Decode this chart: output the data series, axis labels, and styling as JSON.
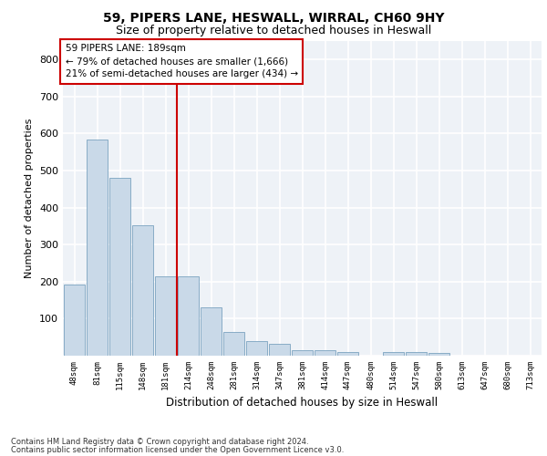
{
  "title1": "59, PIPERS LANE, HESWALL, WIRRAL, CH60 9HY",
  "title2": "Size of property relative to detached houses in Heswall",
  "xlabel": "Distribution of detached houses by size in Heswall",
  "ylabel": "Number of detached properties",
  "footer1": "Contains HM Land Registry data © Crown copyright and database right 2024.",
  "footer2": "Contains public sector information licensed under the Open Government Licence v3.0.",
  "categories": [
    "48sqm",
    "81sqm",
    "115sqm",
    "148sqm",
    "181sqm",
    "214sqm",
    "248sqm",
    "281sqm",
    "314sqm",
    "347sqm",
    "381sqm",
    "414sqm",
    "447sqm",
    "480sqm",
    "514sqm",
    "547sqm",
    "580sqm",
    "613sqm",
    "647sqm",
    "680sqm",
    "713sqm"
  ],
  "values": [
    192,
    585,
    480,
    352,
    215,
    215,
    130,
    63,
    40,
    32,
    16,
    16,
    9,
    0,
    11,
    11,
    8,
    0,
    0,
    0,
    0
  ],
  "bar_color": "#c9d9e8",
  "bar_edge_color": "#7ba3c0",
  "property_line_x": 4.5,
  "property_label": "59 PIPERS LANE: 189sqm",
  "annotation1": "← 79% of detached houses are smaller (1,666)",
  "annotation2": "21% of semi-detached houses are larger (434) →",
  "annotation_box_color": "#ffffff",
  "annotation_box_edge": "#cc0000",
  "line_color": "#cc0000",
  "ylim": [
    0,
    850
  ],
  "yticks": [
    0,
    100,
    200,
    300,
    400,
    500,
    600,
    700,
    800
  ],
  "background_color": "#eef2f7",
  "grid_color": "#ffffff"
}
